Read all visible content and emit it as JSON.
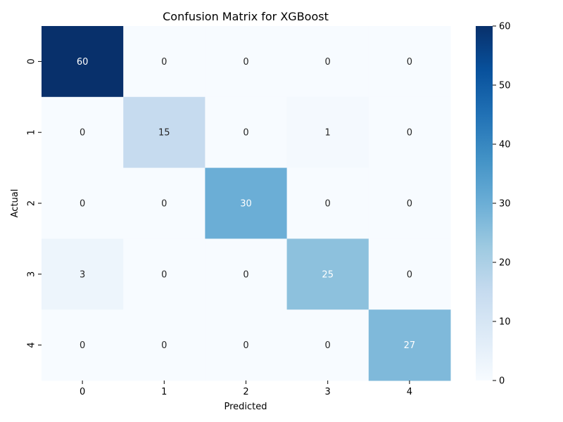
{
  "chart_data": {
    "type": "heatmap",
    "title": "Confusion Matrix for XGBoost",
    "xlabel": "Predicted",
    "ylabel": "Actual",
    "x_categories": [
      "0",
      "1",
      "2",
      "3",
      "4"
    ],
    "y_categories": [
      "0",
      "1",
      "2",
      "3",
      "4"
    ],
    "values": [
      [
        60,
        0,
        0,
        0,
        0
      ],
      [
        0,
        15,
        0,
        1,
        0
      ],
      [
        0,
        0,
        30,
        0,
        0
      ],
      [
        3,
        0,
        0,
        25,
        0
      ],
      [
        0,
        0,
        0,
        0,
        27
      ]
    ],
    "colorbar": {
      "min": 0,
      "max": 60,
      "ticks": [
        "0",
        "10",
        "20",
        "30",
        "40",
        "50",
        "60"
      ]
    },
    "colormap": "Blues",
    "annotations": true
  }
}
